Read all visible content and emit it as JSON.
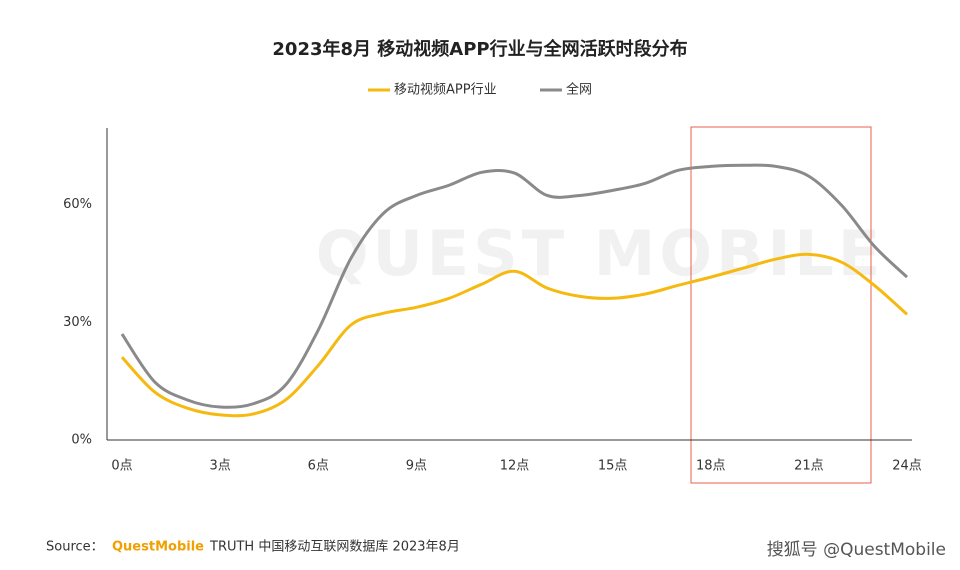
{
  "chart_data": {
    "type": "line",
    "title": "2023年8月 移动视频APP行业与全网活跃时段分布",
    "watermark": "QUEST MOBILE",
    "x": [
      0,
      1,
      2,
      3,
      4,
      5,
      6,
      7,
      8,
      9,
      10,
      11,
      12,
      13,
      14,
      15,
      16,
      17,
      18,
      19,
      20,
      21,
      22,
      23,
      24
    ],
    "xlim": [
      0,
      24
    ],
    "xticks": [
      {
        "value": 0,
        "label": "0点"
      },
      {
        "value": 3,
        "label": "3点"
      },
      {
        "value": 6,
        "label": "6点"
      },
      {
        "value": 9,
        "label": "9点"
      },
      {
        "value": 12,
        "label": "12点"
      },
      {
        "value": 15,
        "label": "15点"
      },
      {
        "value": 18,
        "label": "18点"
      },
      {
        "value": 21,
        "label": "21点"
      },
      {
        "value": 24,
        "label": "24点"
      }
    ],
    "ylim": [
      0,
      80
    ],
    "yticks": [
      {
        "value": 0,
        "label": "0%"
      },
      {
        "value": 30,
        "label": "30%"
      },
      {
        "value": 60,
        "label": "60%"
      }
    ],
    "series": [
      {
        "name": "移动视频APP行业",
        "color": "#f5b90f",
        "values": [
          21.1,
          12.2,
          8.1,
          6.4,
          6.6,
          10.2,
          19,
          29.3,
          32.3,
          33.8,
          36.1,
          39.7,
          43,
          38.7,
          36.6,
          36.1,
          37.2,
          39.4,
          41.5,
          43.8,
          46.1,
          47.3,
          45.3,
          39.4,
          32
        ]
      },
      {
        "name": "全网",
        "color": "#8a8a8a",
        "values": [
          27,
          14.8,
          10.2,
          8.4,
          9.2,
          14,
          28,
          46.3,
          57.8,
          62.3,
          64.9,
          68.2,
          68,
          62.3,
          62.3,
          63.6,
          65.4,
          68.7,
          69.7,
          70,
          69.7,
          67.2,
          59.8,
          49.4,
          41.5
        ]
      }
    ]
  },
  "footer": {
    "source_label": "Source：",
    "brand": "QuestMobile",
    "source_text": "TRUTH 中国移动互联网数据库 2023年8月",
    "credit": "搜狐号 @QuestMobile"
  }
}
